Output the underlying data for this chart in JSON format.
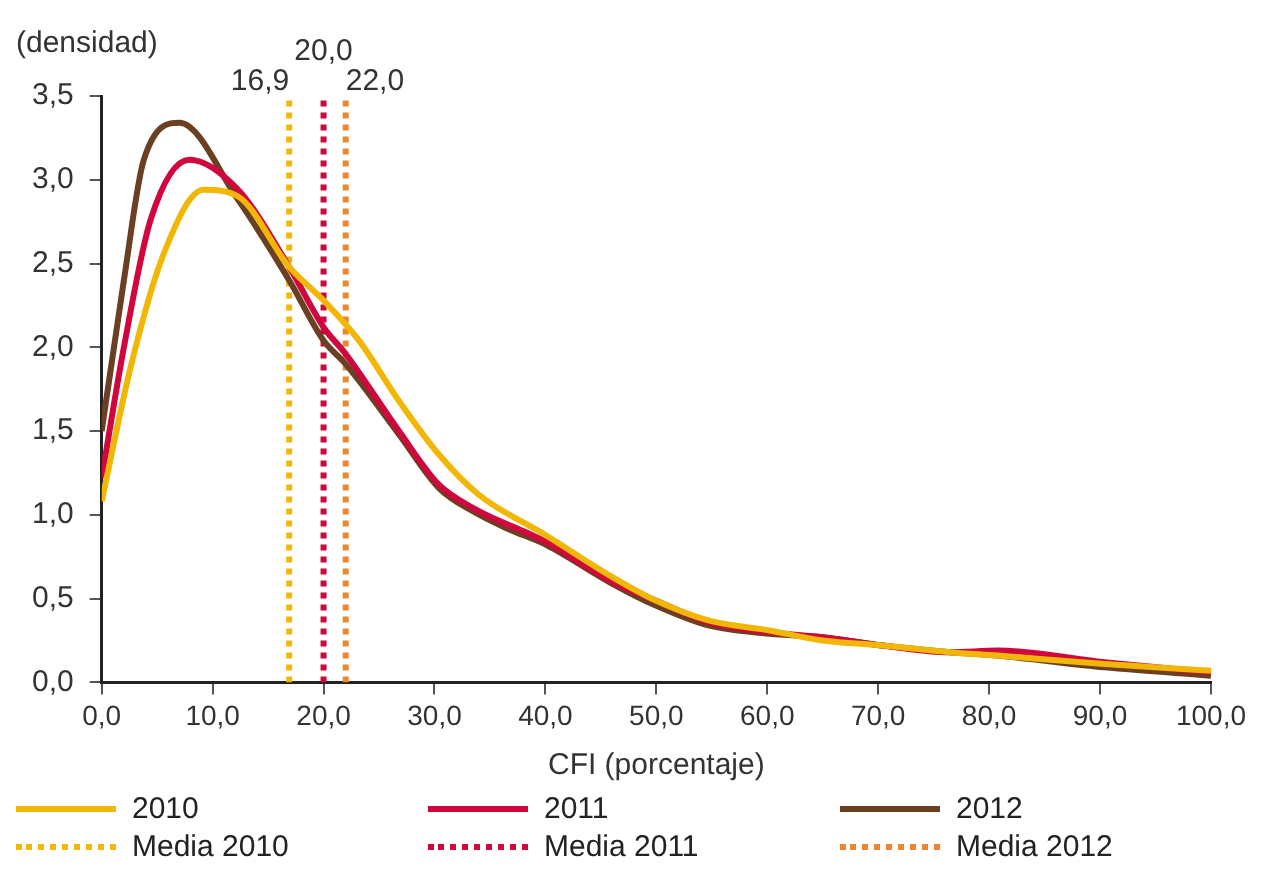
{
  "chart_data": {
    "type": "line",
    "ylabel": "(densidad)",
    "xlabel": "CFI (porcentaje)",
    "xlim": [
      0,
      100
    ],
    "xticks": [
      {
        "value": 0,
        "label": "0,0"
      },
      {
        "value": 10,
        "label": "10,0"
      },
      {
        "value": 20,
        "label": "20,0"
      },
      {
        "value": 30,
        "label": "30,0"
      },
      {
        "value": 40,
        "label": "40,0"
      },
      {
        "value": 50,
        "label": "50,0"
      },
      {
        "value": 60,
        "label": "60,0"
      },
      {
        "value": 70,
        "label": "70,0"
      },
      {
        "value": 80,
        "label": "80,0"
      },
      {
        "value": 90,
        "label": "90,0"
      },
      {
        "value": 100,
        "label": "100,0"
      }
    ],
    "ylim": [
      0,
      3.5
    ],
    "yticks": [
      {
        "value": 0,
        "label": "0,0"
      },
      {
        "value": 0.5,
        "label": "0,5"
      },
      {
        "value": 1,
        "label": "1,0"
      },
      {
        "value": 1.5,
        "label": "1,5"
      },
      {
        "value": 2,
        "label": "2,0"
      },
      {
        "value": 2.5,
        "label": "2,5"
      },
      {
        "value": 3,
        "label": "3,0"
      },
      {
        "value": 3.5,
        "label": "3,5"
      }
    ],
    "grid": false,
    "legend": "bottom",
    "marker": "none",
    "line_style": "solid",
    "series": [
      {
        "name": "2010",
        "color": "#f2b705",
        "x": [
          0,
          2.6,
          5.6,
          9.2,
          12.3,
          16.9,
          20,
          23.2,
          26.8,
          30.4,
          34,
          40,
          46,
          49.9,
          54.7,
          60.2,
          65,
          70.4,
          76.5,
          80.8,
          90.4,
          100
        ],
        "values": [
          1.08,
          1.88,
          2.56,
          2.94,
          2.9,
          2.48,
          2.28,
          2.04,
          1.68,
          1.36,
          1.12,
          0.88,
          0.63,
          0.49,
          0.37,
          0.31,
          0.25,
          0.22,
          0.18,
          0.16,
          0.11,
          0.07
        ]
      },
      {
        "name": "2011",
        "color": "#d0063c",
        "x": [
          0,
          2,
          4.4,
          7.9,
          12.3,
          16.9,
          20,
          22,
          26.8,
          30.4,
          33.5,
          40,
          46,
          49.9,
          54.7,
          60.2,
          65,
          70.4,
          76.5,
          80.8,
          90.4,
          100
        ],
        "values": [
          1.22,
          2.0,
          2.76,
          3.12,
          2.94,
          2.48,
          2.12,
          1.96,
          1.5,
          1.18,
          1.04,
          0.84,
          0.6,
          0.49,
          0.36,
          0.3,
          0.27,
          0.22,
          0.18,
          0.19,
          0.12,
          0.06
        ]
      },
      {
        "name": "2012",
        "color": "#6b3f22",
        "x": [
          0,
          2,
          3.8,
          7,
          12.3,
          16.9,
          20,
          22,
          26.8,
          30.4,
          33.5,
          36.5,
          40.1,
          46,
          49.9,
          54.7,
          60.2,
          65,
          70.4,
          76.5,
          80.8,
          90.4,
          100
        ],
        "values": [
          1.5,
          2.4,
          3.12,
          3.34,
          2.88,
          2.4,
          2.04,
          1.9,
          1.48,
          1.16,
          1.02,
          0.92,
          0.82,
          0.59,
          0.46,
          0.34,
          0.29,
          0.27,
          0.22,
          0.18,
          0.16,
          0.09,
          0.04
        ]
      }
    ],
    "ref_lines": [
      {
        "axis": "x",
        "value": 16.9,
        "label": "Media 2010",
        "color": "#f2b705",
        "line_style": "dotted"
      },
      {
        "axis": "x",
        "value": 20,
        "label": "Media 2011",
        "color": "#d0063c",
        "line_style": "dotted"
      },
      {
        "axis": "x",
        "value": 22,
        "label": "Media 2012",
        "color": "#ee8630",
        "line_style": "dotted"
      }
    ],
    "annotations": [
      {
        "text": "16,9",
        "x": 16.9,
        "y": 3.5
      },
      {
        "text": "20,0",
        "x": 20,
        "y": 3.5
      },
      {
        "text": "22,0",
        "x": 22,
        "y": 3.5
      }
    ]
  }
}
